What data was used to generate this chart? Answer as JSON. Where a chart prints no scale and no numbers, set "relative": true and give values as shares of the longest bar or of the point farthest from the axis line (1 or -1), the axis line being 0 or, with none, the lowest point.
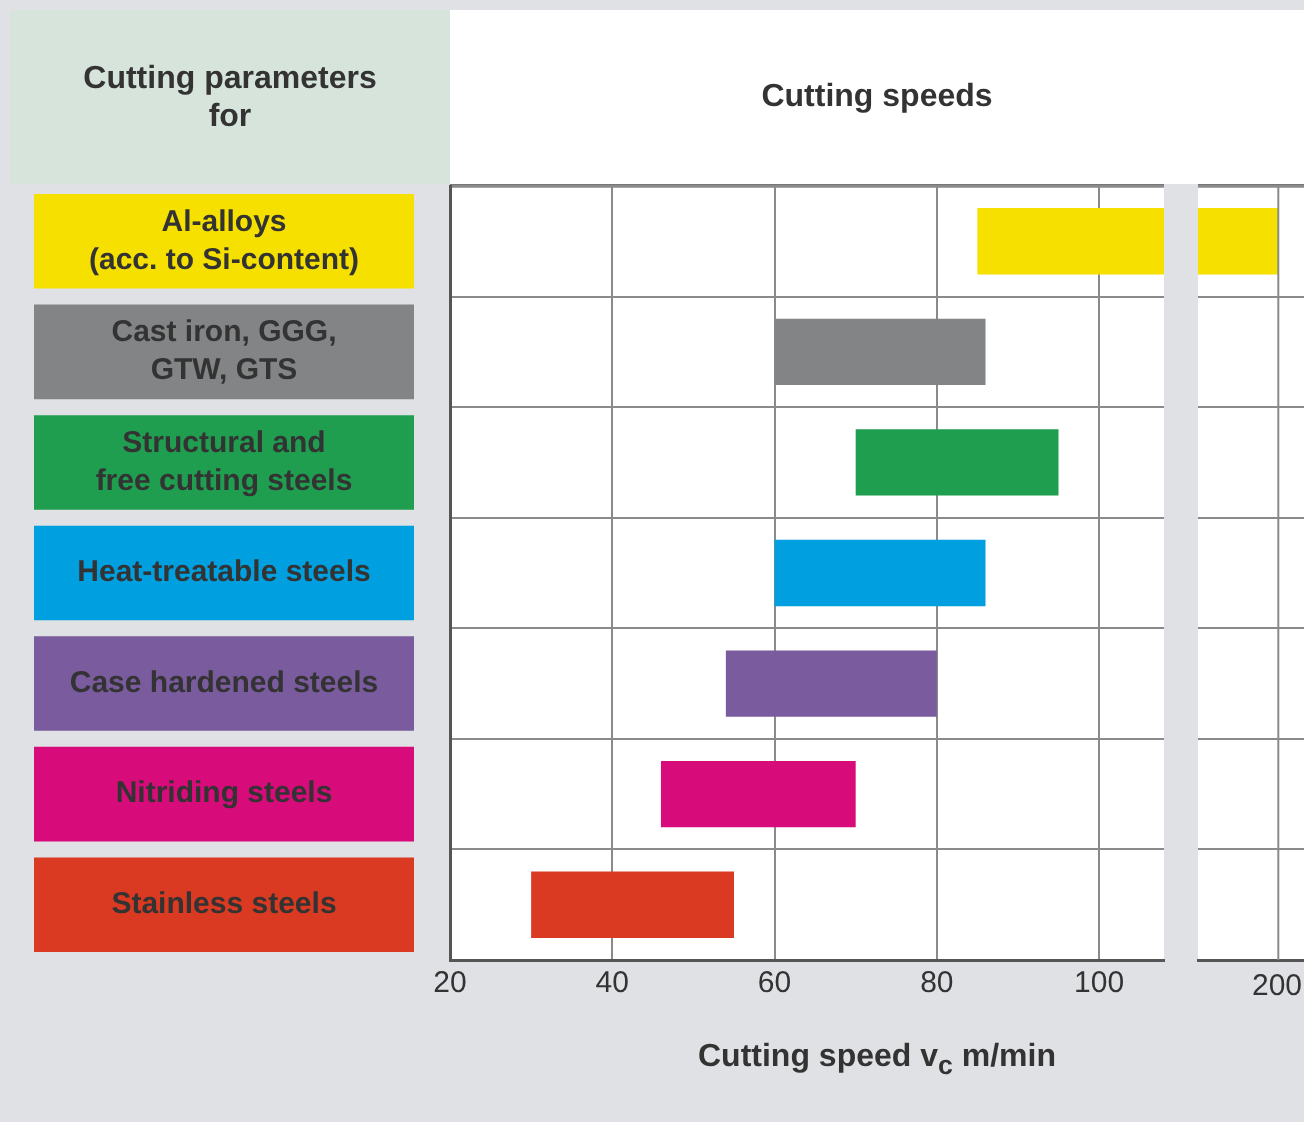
{
  "chart_data": [
    {
      "type": "bar",
      "orientation": "horizontal",
      "title": "Cutting speeds",
      "ylabel": "Cutting parameters\nfor",
      "xlabel": "Cutting speed v$_{c}$ m/min",
      "categories": [
        "Al-alloys\n(acc. to Si-content)",
        "Cast iron, GGG,\nGTW, GTS",
        "Structural and\nfree cutting steels",
        "Heat-treatable steels",
        "Case hardened steels",
        "Nitriding steels",
        "Stainless steels"
      ],
      "base": [
        85,
        60,
        70,
        60,
        54,
        46,
        30
      ],
      "values": [
        23,
        26,
        25,
        26,
        26,
        24,
        25
      ],
      "colors": [
        "#f5e000",
        "#838486",
        "#1f9e50",
        "#009fdf",
        "#7a5b9e",
        "#d80b7b",
        "#db3a22"
      ],
      "xlim": [
        20,
        108
      ],
      "xticks": [
        20,
        40,
        60,
        80,
        100
      ],
      "grid": true
    },
    {
      "type": "bar",
      "orientation": "horizontal",
      "relative": true,
      "categories": [
        null,
        null,
        null,
        null,
        null,
        null,
        null
      ],
      "values": [
        1,
        null,
        null,
        null,
        null,
        null,
        null
      ],
      "color": "#f5e000",
      "grid": "y",
      "annotations": [
        "200"
      ]
    }
  ]
}
